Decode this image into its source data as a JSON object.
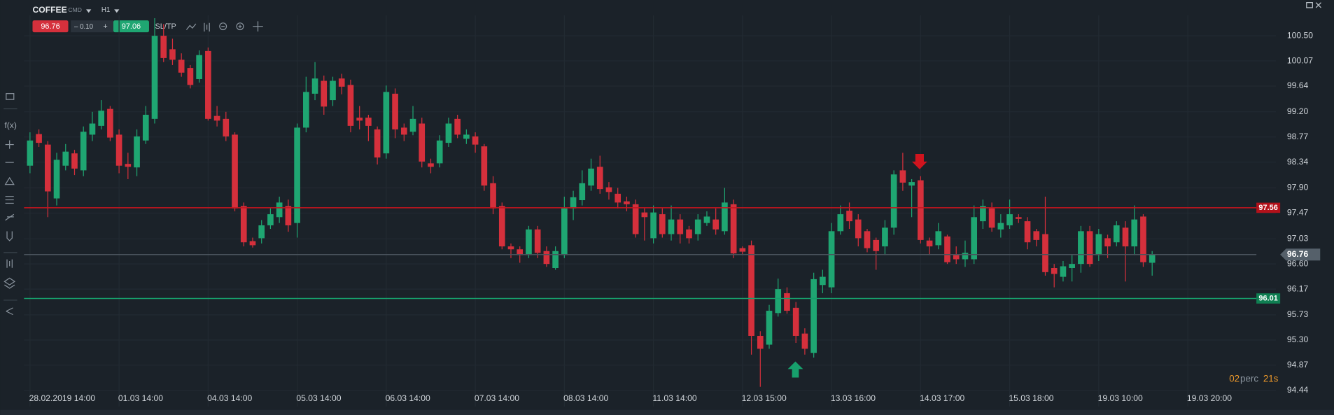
{
  "toolbar": {
    "symbol": "COFFEE",
    "market": "CMD",
    "timeframe": "H1",
    "sell": "96.76",
    "spread": "– 0.10",
    "plus": "+",
    "buy": "97.06",
    "sltp": "SL/TP",
    "fx": "f(x)"
  },
  "timer": {
    "minutes": "02",
    "unit": "perc",
    "seconds": "21s"
  },
  "chart_data": {
    "type": "candlestick",
    "up_color": "#1fa672",
    "down_color": "#d5303c",
    "open": [
      98.28,
      98.82,
      98.64,
      97.72,
      98.28,
      98.49,
      98.2,
      98.81,
      98.96,
      99.25,
      98.81,
      98.31,
      98.25,
      98.71,
      99.08,
      100.5,
      100.27,
      100.09,
      99.95,
      99.76,
      100.24,
      99.13,
      99.08,
      98.81,
      97.59,
      96.99,
      97.04,
      97.26,
      97.4,
      97.59,
      97.3,
      98.93,
      99.51,
      99.73,
      99.4,
      99.77,
      99.66,
      99.1,
      99.1,
      98.9,
      98.49,
      99.51,
      98.93,
      98.86,
      99.0,
      98.32,
      98.32,
      98.67,
      99.08,
      98.74,
      98.78,
      98.61,
      97.98,
      97.59,
      96.9,
      96.85,
      96.75,
      97.19,
      96.82,
      96.53,
      96.75,
      97.55,
      97.69,
      97.94,
      98.26,
      97.91,
      97.8,
      97.67,
      97.62,
      97.48,
      97.04,
      97.45,
      97.11,
      97.36,
      97.19,
      97.11,
      97.3,
      97.36,
      97.16,
      97.62,
      96.87,
      96.92,
      95.37,
      95.22,
      95.76,
      96.1,
      95.85,
      95.41,
      95.08,
      96.24,
      96.2,
      97.16,
      97.51,
      97.36,
      97.16,
      97.01,
      96.9,
      97.22,
      98.2,
      97.94,
      98.03,
      97.0,
      96.92,
      97.07,
      96.75,
      96.68,
      96.68,
      97.33,
      97.55,
      97.19,
      97.26,
      97.4,
      97.33,
      97.16,
      97.11,
      96.53,
      96.38,
      96.53,
      96.6,
      97.16,
      96.75,
      97.04,
      96.97,
      97.22,
      96.9,
      97.41,
      96.62
    ],
    "high": [
      98.85,
      98.9,
      98.7,
      98.5,
      98.65,
      98.55,
      98.95,
      99.2,
      99.4,
      99.3,
      98.9,
      98.5,
      98.9,
      99.3,
      100.8,
      100.7,
      100.45,
      100.2,
      100.0,
      100.25,
      100.3,
      99.3,
      99.2,
      98.85,
      97.65,
      97.05,
      97.35,
      97.55,
      97.75,
      97.7,
      99.0,
      99.8,
      100.05,
      99.82,
      99.8,
      99.85,
      99.75,
      99.3,
      99.15,
      98.95,
      99.65,
      99.6,
      99.0,
      99.3,
      99.1,
      98.4,
      98.8,
      99.1,
      99.15,
      98.9,
      98.85,
      98.65,
      98.1,
      97.65,
      96.95,
      96.9,
      97.25,
      97.25,
      96.9,
      96.9,
      97.75,
      97.85,
      98.2,
      98.4,
      98.45,
      98.0,
      97.9,
      97.75,
      97.7,
      97.55,
      97.6,
      97.55,
      97.6,
      97.45,
      97.25,
      97.45,
      97.5,
      97.55,
      97.9,
      97.7,
      96.9,
      97.0,
      95.45,
      95.9,
      96.35,
      96.2,
      95.95,
      95.5,
      96.45,
      96.5,
      97.3,
      97.6,
      97.65,
      97.45,
      97.2,
      97.05,
      97.35,
      98.2,
      98.5,
      98.05,
      98.1,
      97.05,
      97.3,
      97.1,
      96.9,
      97.0,
      97.6,
      97.7,
      97.65,
      97.45,
      97.7,
      97.45,
      97.4,
      97.2,
      97.75,
      96.6,
      96.65,
      96.75,
      97.25,
      97.25,
      97.2,
      97.1,
      97.33,
      97.33,
      97.6,
      97.45,
      96.82
    ],
    "low": [
      98.15,
      98.6,
      97.4,
      97.6,
      98.2,
      98.12,
      98.1,
      98.7,
      98.9,
      98.7,
      98.15,
      98.05,
      98.1,
      98.65,
      99.0,
      100.05,
      100.0,
      99.8,
      99.6,
      99.7,
      99.05,
      98.95,
      98.7,
      97.5,
      96.9,
      96.88,
      96.95,
      97.2,
      97.3,
      97.15,
      97.05,
      98.85,
      99.4,
      99.15,
      99.3,
      99.5,
      98.85,
      98.9,
      98.7,
      98.3,
      98.4,
      98.75,
      98.7,
      98.8,
      98.25,
      98.15,
      98.25,
      98.6,
      98.75,
      98.65,
      98.5,
      97.85,
      97.45,
      96.85,
      96.7,
      96.62,
      96.7,
      96.7,
      96.55,
      96.5,
      96.7,
      97.35,
      97.6,
      97.85,
      97.8,
      97.7,
      97.55,
      97.5,
      97.05,
      97.0,
      96.95,
      97.05,
      97.0,
      96.95,
      96.95,
      97.0,
      97.25,
      97.1,
      97.1,
      96.7,
      96.75,
      95.05,
      94.5,
      95.15,
      95.7,
      95.75,
      95.25,
      95.05,
      95.0,
      96.1,
      96.1,
      97.1,
      97.2,
      96.9,
      96.8,
      96.5,
      96.75,
      97.1,
      97.85,
      97.4,
      96.95,
      96.75,
      96.85,
      96.6,
      96.6,
      96.55,
      96.6,
      97.2,
      97.15,
      97.05,
      97.2,
      97.3,
      96.85,
      96.9,
      96.4,
      96.2,
      96.3,
      96.3,
      96.45,
      96.55,
      96.65,
      96.7,
      96.9,
      96.3,
      96.75,
      96.55,
      96.4
    ],
    "close": [
      98.71,
      98.67,
      97.84,
      98.38,
      98.52,
      98.23,
      98.86,
      99.0,
      99.22,
      98.76,
      98.28,
      98.26,
      98.78,
      99.15,
      100.5,
      100.12,
      100.09,
      99.87,
      99.66,
      100.17,
      99.08,
      99.05,
      98.78,
      97.55,
      96.97,
      96.92,
      97.26,
      97.45,
      97.65,
      97.26,
      98.93,
      99.54,
      99.77,
      99.29,
      99.73,
      99.63,
      98.96,
      99.05,
      98.96,
      98.42,
      99.54,
      98.9,
      98.81,
      99.08,
      98.35,
      98.26,
      98.71,
      99.0,
      98.81,
      98.81,
      98.64,
      97.94,
      97.55,
      96.9,
      96.85,
      96.75,
      97.19,
      96.79,
      96.6,
      96.82,
      97.55,
      97.74,
      97.98,
      98.23,
      97.88,
      97.83,
      97.65,
      97.62,
      97.11,
      97.4,
      97.48,
      97.11,
      97.36,
      97.11,
      97.04,
      97.36,
      97.41,
      97.19,
      97.65,
      96.78,
      96.81,
      95.37,
      95.15,
      95.8,
      96.17,
      95.8,
      95.37,
      95.15,
      96.34,
      96.38,
      97.16,
      97.45,
      97.33,
      97.04,
      96.87,
      96.82,
      97.22,
      98.13,
      97.99,
      98.0,
      97.01,
      96.9,
      97.16,
      96.63,
      96.68,
      96.79,
      97.4,
      97.59,
      97.22,
      97.3,
      97.45,
      97.37,
      96.97,
      97.01,
      96.46,
      96.43,
      96.56,
      96.6,
      97.16,
      96.6,
      97.11,
      96.9,
      97.26,
      96.9,
      97.36,
      96.63,
      96.76
    ],
    "xlim": [
      -0.67,
      139.9
    ],
    "xticks": [
      {
        "value": 0,
        "label": "28.02.2019 14:00"
      },
      {
        "value": 10,
        "label": "01.03 14:00"
      },
      {
        "value": 20,
        "label": "04.03 14:00"
      },
      {
        "value": 30,
        "label": "05.03 14:00"
      },
      {
        "value": 40,
        "label": "06.03 14:00"
      },
      {
        "value": 50,
        "label": "07.03 14:00"
      },
      {
        "value": 60,
        "label": "08.03 14:00"
      },
      {
        "value": 70,
        "label": "11.03 14:00"
      },
      {
        "value": 80,
        "label": "12.03 15:00"
      },
      {
        "value": 90,
        "label": "13.03 16:00"
      },
      {
        "value": 100,
        "label": "14.03 17:00"
      },
      {
        "value": 110,
        "label": "15.03 18:00"
      },
      {
        "value": 120,
        "label": "19.03 10:00"
      },
      {
        "value": 130,
        "label": "19.03 20:00"
      }
    ],
    "ylim": [
      94.3,
      100.85
    ],
    "yticks": [
      {
        "value": 100.5,
        "label": "100.50"
      },
      100.07,
      99.64,
      {
        "value": 99.2,
        "label": "99.20"
      },
      98.77,
      98.34,
      {
        "value": 97.9,
        "label": "97.90"
      },
      97.47,
      97.03,
      {
        "value": 96.6,
        "label": "96.60"
      },
      96.17,
      95.73,
      {
        "value": 95.3,
        "label": "95.30"
      },
      94.87,
      94.44
    ],
    "grid": true,
    "hlines": [
      {
        "value": 97.56,
        "color": "#c8141e",
        "label_color": "#b3111a"
      },
      {
        "value": 96.76,
        "color": "#4a535c",
        "label_color": "#55606a",
        "current": true
      },
      {
        "value": 96.01,
        "color": "#17a06c",
        "label_color": "#0f7f52"
      }
    ]
  }
}
